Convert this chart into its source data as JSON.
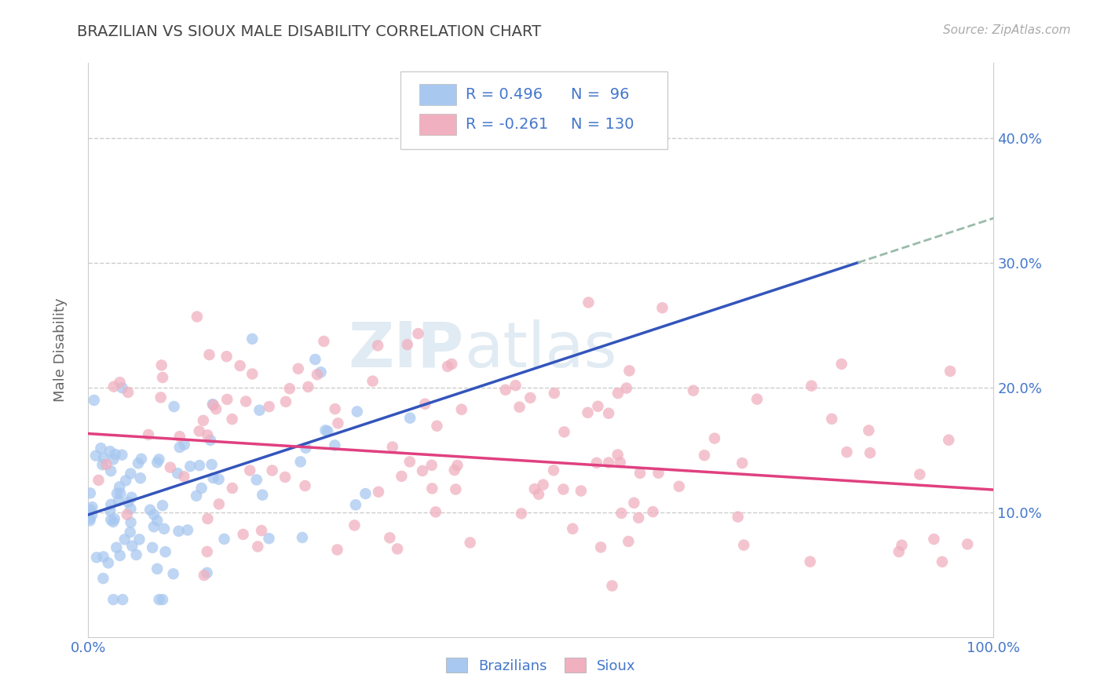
{
  "title": "BRAZILIAN VS SIOUX MALE DISABILITY CORRELATION CHART",
  "source": "Source: ZipAtlas.com",
  "watermark_bold": "ZIP",
  "watermark_light": "atlas",
  "xlabel_start": "0.0%",
  "xlabel_end": "100.0%",
  "ylabel": "Male Disability",
  "yticks": [
    "10.0%",
    "20.0%",
    "30.0%",
    "40.0%"
  ],
  "ytick_vals": [
    0.1,
    0.2,
    0.3,
    0.4
  ],
  "xlim": [
    0.0,
    1.0
  ],
  "ylim": [
    0.0,
    0.46
  ],
  "brazilian_color": "#a8c8f0",
  "sioux_color": "#f0b0c0",
  "brazilian_line_color": "#3355bb",
  "sioux_line_color": "#e04080",
  "trend_extension_color": "#99bbaa",
  "R_brazilian": 0.496,
  "N_brazilian": 96,
  "R_sioux": -0.261,
  "N_sioux": 130,
  "legend_text_color": "#4477cc",
  "title_color": "#444444",
  "axis_label_color": "#4477cc",
  "background_color": "#ffffff",
  "grid_color": "#cccccc",
  "grid_style": "--",
  "braz_line_x0": 0.0,
  "braz_line_y0": 0.098,
  "braz_line_x1": 0.85,
  "braz_line_y1": 0.3,
  "sioux_line_x0": 0.0,
  "sioux_line_y0": 0.163,
  "sioux_line_x1": 1.0,
  "sioux_line_y1": 0.118
}
